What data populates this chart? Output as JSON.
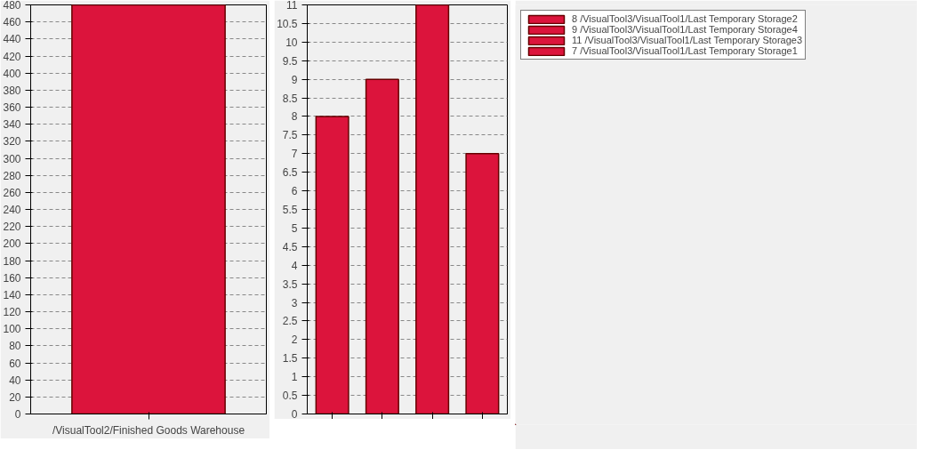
{
  "chart_data": [
    {
      "type": "bar",
      "categories": [
        "/VisualTool2/Finished Goods Warehouse"
      ],
      "series": [
        {
          "color": "#dc143c",
          "values": [
            480
          ]
        }
      ],
      "ylim": [
        0,
        480
      ],
      "yticks": [
        0,
        20,
        40,
        60,
        80,
        100,
        120,
        140,
        160,
        180,
        200,
        220,
        240,
        260,
        280,
        300,
        320,
        340,
        360,
        380,
        400,
        420,
        440,
        460,
        480
      ],
      "grid": "y",
      "legend": false
    },
    {
      "type": "bar",
      "categories": [
        null,
        null,
        null,
        null
      ],
      "series": [
        {
          "name": "8 /VisualTool3/VisualTool1/Last Temporary Storage2",
          "color": "#dc143c",
          "values": [
            8,
            null,
            null,
            null
          ]
        },
        {
          "name": "9 /VisualTool3/VisualTool1/Last Temporary Storage4",
          "color": "#dc143c",
          "values": [
            null,
            9,
            null,
            null
          ]
        },
        {
          "name": "11 /VisualTool3/VisualTool1/Last Temporary Storage3",
          "color": "#dc143c",
          "values": [
            null,
            null,
            11,
            null
          ]
        },
        {
          "name": "7 /VisualTool3/VisualTool1/Last Temporary Storage1",
          "color": "#dc143c",
          "values": [
            null,
            null,
            null,
            7
          ]
        }
      ],
      "stacked": true,
      "ylim": [
        0,
        11
      ],
      "yticks": [
        0,
        0.5,
        1,
        1.5,
        2,
        2.5,
        3,
        3.5,
        4,
        4.5,
        5,
        5.5,
        6,
        6.5,
        7,
        7.5,
        8,
        8.5,
        9,
        9.5,
        10,
        10.5,
        11
      ],
      "grid": "y",
      "legend": "top right"
    }
  ]
}
